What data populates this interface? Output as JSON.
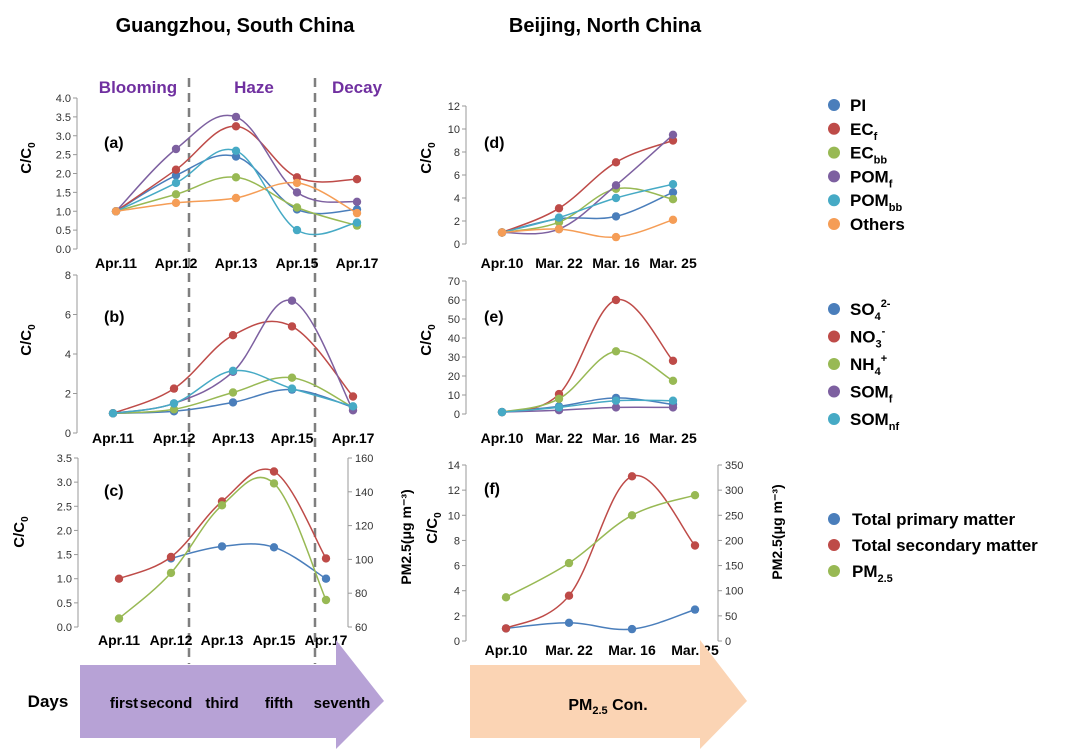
{
  "figure": {
    "titles": {
      "left": "Guangzhou, South China",
      "right": "Beijing, North China"
    },
    "phases": {
      "blooming": "Blooming",
      "haze": "Haze",
      "decay": "Decay"
    },
    "ylabel": "C/C",
    "ylabel_sub": "0",
    "pm_axis_label": "PM2.5(μg m⁻³)",
    "bottom": {
      "days_label": "Days",
      "days": [
        "first",
        "second",
        "third",
        "fifth",
        "seventh"
      ],
      "pm_label": "PM2.5 Con."
    },
    "legends": {
      "top": [
        "PI",
        "ECf",
        "ECbb",
        "POMf",
        "POMbb",
        "Others"
      ],
      "middle": [
        "SO4 2-",
        "NO3 -",
        "NH4 +",
        "SOMf",
        "SOMnf"
      ],
      "bottom": [
        "Total primary matter",
        "Total secondary matter",
        "PM2.5"
      ]
    },
    "colors": {
      "blue": "#4a7ebb",
      "red": "#be4b48",
      "green": "#98b954",
      "purple": "#7d60a0",
      "cyan": "#46aac5",
      "orange": "#f59d56",
      "arrow_left": "#b7a2d6",
      "arrow_right": "#fbd4b4",
      "phase_text": "#7030a0"
    }
  },
  "chart_data": [
    {
      "id": "a",
      "type": "line",
      "panel_label": "(a)",
      "categories": [
        "Apr.11",
        "Apr.12",
        "Apr.13",
        "Apr.15",
        "Apr.17"
      ],
      "ylim": [
        0,
        4
      ],
      "yticks": [
        "0.0",
        "0.5",
        "1.0",
        "1.5",
        "2.0",
        "2.5",
        "3.0",
        "3.5",
        "4.0"
      ],
      "series": [
        {
          "name": "PI",
          "color": "blue",
          "values": [
            1.0,
            1.95,
            2.45,
            1.05,
            1.05
          ]
        },
        {
          "name": "ECf",
          "color": "red",
          "values": [
            1.0,
            2.1,
            3.25,
            1.9,
            1.85
          ]
        },
        {
          "name": "ECbb",
          "color": "green",
          "values": [
            1.0,
            1.45,
            1.9,
            1.1,
            0.62
          ]
        },
        {
          "name": "POMf",
          "color": "purple",
          "values": [
            1.0,
            2.65,
            3.5,
            1.5,
            1.25
          ]
        },
        {
          "name": "POMbb",
          "color": "cyan",
          "values": [
            1.0,
            1.75,
            2.6,
            0.5,
            0.7
          ]
        },
        {
          "name": "Others",
          "color": "orange",
          "values": [
            1.0,
            1.22,
            1.35,
            1.75,
            0.95
          ]
        }
      ]
    },
    {
      "id": "b",
      "type": "line",
      "panel_label": "(b)",
      "categories": [
        "Apr.11",
        "Apr.12",
        "Apr.13",
        "Apr.15",
        "Apr.17"
      ],
      "ylim": [
        0,
        8
      ],
      "yticks": [
        "0",
        "2",
        "4",
        "6",
        "8"
      ],
      "series": [
        {
          "name": "SO4 2-",
          "color": "blue",
          "values": [
            1.0,
            1.1,
            1.55,
            2.2,
            1.3
          ]
        },
        {
          "name": "NO3 -",
          "color": "red",
          "values": [
            1.0,
            2.25,
            4.95,
            5.4,
            1.85
          ]
        },
        {
          "name": "NH4 +",
          "color": "green",
          "values": [
            1.0,
            1.2,
            2.05,
            2.8,
            1.3
          ]
        },
        {
          "name": "SOMf",
          "color": "purple",
          "values": [
            1.0,
            1.5,
            3.1,
            6.7,
            1.15
          ]
        },
        {
          "name": "SOMnf",
          "color": "cyan",
          "values": [
            1.0,
            1.5,
            3.15,
            2.25,
            1.35
          ]
        }
      ]
    },
    {
      "id": "c",
      "type": "line",
      "panel_label": "(c)",
      "categories": [
        "Apr.11",
        "Apr.12",
        "Apr.13",
        "Apr.15",
        "Apr.17"
      ],
      "ylim": [
        0,
        3.5
      ],
      "yticks": [
        "0.0",
        "0.5",
        "1.0",
        "1.5",
        "2.0",
        "2.5",
        "3.0",
        "3.5"
      ],
      "y2lim": [
        60,
        160
      ],
      "y2ticks": [
        "60",
        "80",
        "100",
        "120",
        "140",
        "160"
      ],
      "series": [
        {
          "name": "Total primary matter",
          "color": "blue",
          "axis": "left",
          "values": [
            null,
            1.42,
            1.67,
            1.65,
            1.0
          ]
        },
        {
          "name": "Total secondary matter",
          "color": "red",
          "axis": "left",
          "values": [
            1.0,
            1.45,
            2.6,
            3.22,
            1.42
          ]
        },
        {
          "name": "PM2.5",
          "color": "green",
          "axis": "right",
          "values": [
            65,
            92,
            132,
            145,
            76
          ]
        }
      ]
    },
    {
      "id": "d",
      "type": "line",
      "panel_label": "(d)",
      "categories": [
        "Apr.10",
        "Mar. 22",
        "Mar. 16",
        "Mar. 25"
      ],
      "ylim": [
        0,
        12
      ],
      "yticks": [
        "0",
        "2",
        "4",
        "6",
        "8",
        "10",
        "12"
      ],
      "series": [
        {
          "name": "PI",
          "color": "blue",
          "values": [
            1.0,
            2.2,
            2.4,
            4.5
          ]
        },
        {
          "name": "ECf",
          "color": "red",
          "values": [
            1.0,
            3.1,
            7.1,
            9.0
          ]
        },
        {
          "name": "ECbb",
          "color": "green",
          "values": [
            1.0,
            1.9,
            4.8,
            3.9
          ]
        },
        {
          "name": "POMf",
          "color": "purple",
          "values": [
            1.0,
            1.3,
            5.1,
            9.5
          ]
        },
        {
          "name": "POMbb",
          "color": "cyan",
          "values": [
            1.0,
            2.3,
            4.0,
            5.2
          ]
        },
        {
          "name": "Others",
          "color": "orange",
          "values": [
            1.0,
            1.3,
            0.6,
            2.1
          ]
        }
      ]
    },
    {
      "id": "e",
      "type": "line",
      "panel_label": "(e)",
      "categories": [
        "Apr.10",
        "Mar. 22",
        "Mar. 16",
        "Mar. 25"
      ],
      "ylim": [
        0,
        70
      ],
      "yticks": [
        "0",
        "10",
        "20",
        "30",
        "40",
        "50",
        "60",
        "70"
      ],
      "series": [
        {
          "name": "SO4 2-",
          "color": "blue",
          "values": [
            1.0,
            4.0,
            8.5,
            5.0
          ]
        },
        {
          "name": "NO3 -",
          "color": "red",
          "values": [
            1.0,
            10.5,
            60.0,
            28.0
          ]
        },
        {
          "name": "NH4 +",
          "color": "green",
          "values": [
            1.0,
            8.0,
            33.0,
            17.5
          ]
        },
        {
          "name": "SOMf",
          "color": "purple",
          "values": [
            1.0,
            2.0,
            3.5,
            3.5
          ]
        },
        {
          "name": "SOMnf",
          "color": "cyan",
          "values": [
            1.0,
            3.5,
            7.0,
            7.0
          ]
        }
      ]
    },
    {
      "id": "f",
      "type": "line",
      "panel_label": "(f)",
      "categories": [
        "Apr.10",
        "Mar. 22",
        "Mar. 16",
        "Mar. 25"
      ],
      "ylim": [
        0,
        14
      ],
      "yticks": [
        "0",
        "2",
        "4",
        "6",
        "8",
        "10",
        "12",
        "14"
      ],
      "y2lim": [
        0,
        350
      ],
      "y2ticks": [
        "0",
        "50",
        "100",
        "150",
        "200",
        "250",
        "300",
        "350"
      ],
      "series": [
        {
          "name": "Total primary matter",
          "color": "blue",
          "axis": "left",
          "values": [
            1.0,
            1.45,
            0.95,
            2.5
          ]
        },
        {
          "name": "Total secondary matter",
          "color": "red",
          "axis": "left",
          "values": [
            1.0,
            3.6,
            13.1,
            7.6
          ]
        },
        {
          "name": "PM2.5",
          "color": "green",
          "axis": "right",
          "values": [
            87,
            155,
            250,
            290
          ]
        }
      ]
    }
  ]
}
